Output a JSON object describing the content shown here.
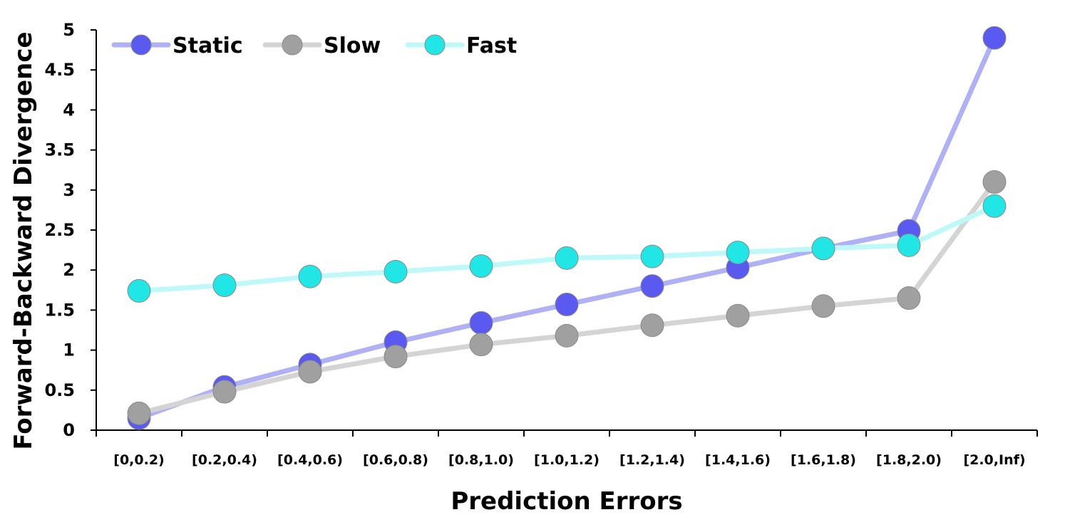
{
  "chart_data": {
    "type": "line",
    "title": "",
    "xlabel": "Prediction Errors",
    "ylabel": "Forward-Backward Divergence",
    "categories": [
      "[0,0.2)",
      "[0.2,0.4)",
      "[0.4,0.6)",
      "[0.6,0.8)",
      "[0.8,1.0)",
      "[1.0,1.2)",
      "[1.2,1.4)",
      "[1.4,1.6)",
      "[1.6,1.8)",
      "[1.8,2.0)",
      "[2.0,Inf)"
    ],
    "yticks": [
      "0",
      "0.5",
      "1",
      "1.5",
      "2",
      "2.5",
      "3",
      "3.5",
      "4",
      "4.5",
      "5"
    ],
    "ylim": [
      0,
      5
    ],
    "grid": false,
    "legend_position": "top-left",
    "series": [
      {
        "name": "Static",
        "line_color": "#b0b0f4",
        "marker_color": "#5a5af0",
        "values": [
          0.15,
          0.54,
          0.82,
          1.1,
          1.34,
          1.57,
          1.8,
          2.03,
          2.27,
          2.49,
          4.9
        ]
      },
      {
        "name": "Slow",
        "line_color": "#d4d4d4",
        "marker_color": "#a0a0a0",
        "values": [
          0.21,
          0.48,
          0.73,
          0.92,
          1.07,
          1.18,
          1.31,
          1.43,
          1.55,
          1.65,
          3.1
        ]
      },
      {
        "name": "Fast",
        "line_color": "#bff8f8",
        "marker_color": "#22e6e6",
        "values": [
          1.74,
          1.81,
          1.92,
          1.98,
          2.05,
          2.15,
          2.17,
          2.22,
          2.27,
          2.31,
          2.8
        ]
      }
    ]
  }
}
